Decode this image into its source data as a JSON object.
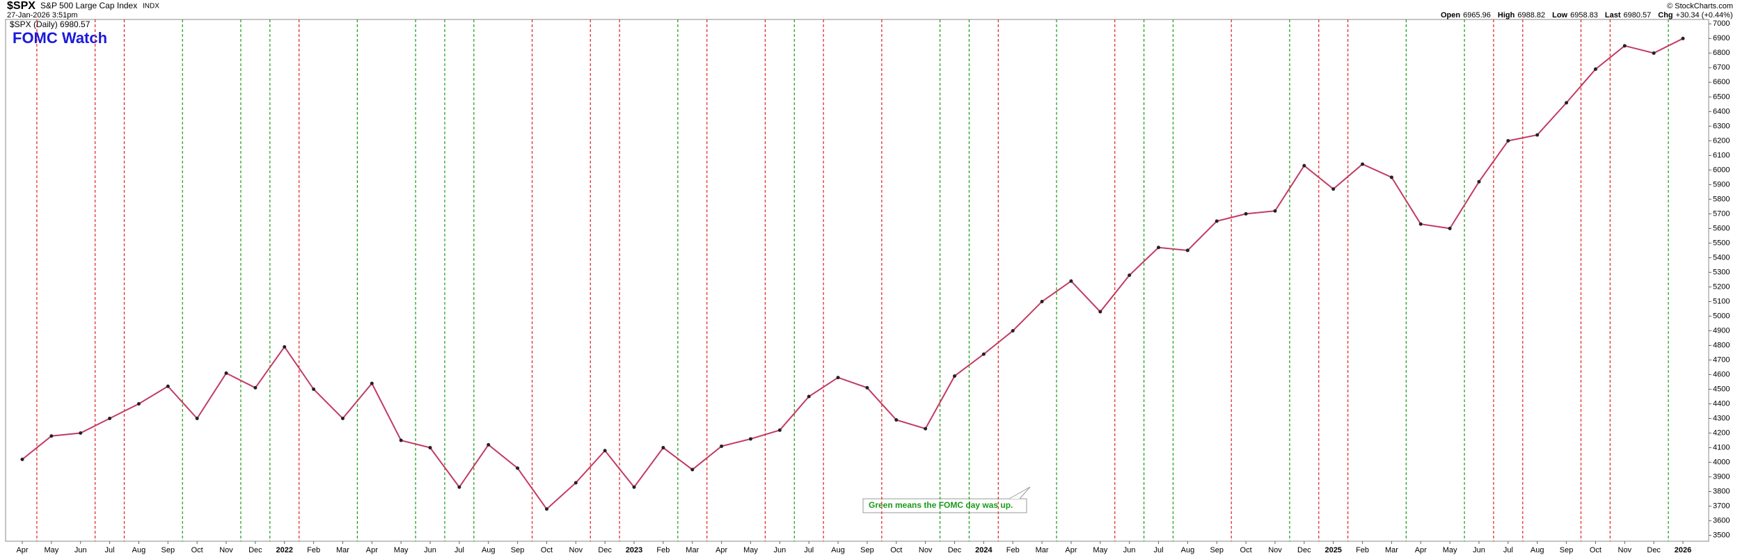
{
  "header": {
    "symbol": "$SPX",
    "name": "S&P 500 Large Cap Index",
    "exchange": "INDX",
    "timestamp": "27-Jan-2026 3:51pm",
    "legend": "$SPX (Daily) 6980.57",
    "copyright": "© StockCharts.com",
    "quote": [
      {
        "label": "Open",
        "value": "6965.96"
      },
      {
        "label": "High",
        "value": "6988.82"
      },
      {
        "label": "Low",
        "value": "6958.83"
      },
      {
        "label": "Last",
        "value": "6980.57"
      },
      {
        "label": "Chg",
        "value": "+30.34 (+0.44%)"
      }
    ]
  },
  "chart_data": {
    "type": "line",
    "title": "FOMC Watch",
    "annotation": "Green means the FOMC day was up.",
    "categories": [
      "Apr",
      "May",
      "Jun",
      "Jul",
      "Aug",
      "Sep",
      "Oct",
      "Nov",
      "Dec",
      "2022",
      "Feb",
      "Mar",
      "Apr",
      "May",
      "Jun",
      "Jul",
      "Aug",
      "Sep",
      "Oct",
      "Nov",
      "Dec",
      "2023",
      "Feb",
      "Mar",
      "Apr",
      "May",
      "Jun",
      "Jul",
      "Aug",
      "Sep",
      "Oct",
      "Nov",
      "Dec",
      "2024",
      "Feb",
      "Mar",
      "Apr",
      "May",
      "Jun",
      "Jul",
      "Aug",
      "Sep",
      "Oct",
      "Nov",
      "Dec",
      "2025",
      "Feb",
      "Mar",
      "Apr",
      "May",
      "Jun",
      "Jul",
      "Aug",
      "Sep",
      "Oct",
      "Nov",
      "Dec",
      "2026"
    ],
    "series": [
      {
        "name": "$SPX",
        "color": "#c23a62",
        "values": [
          4020,
          4180,
          4200,
          4300,
          4400,
          4520,
          4300,
          4610,
          4510,
          4790,
          4500,
          4300,
          4540,
          4150,
          4100,
          3830,
          4120,
          3960,
          3680,
          3860,
          4080,
          3830,
          4100,
          3950,
          4110,
          4160,
          4220,
          4450,
          4580,
          4510,
          4290,
          4230,
          4590,
          4740,
          4900,
          5100,
          5240,
          5030,
          5280,
          5470,
          5450,
          5650,
          5700,
          5720,
          6030,
          5870,
          6040,
          5950,
          5630,
          5600,
          5920,
          6200,
          6240,
          6460,
          6690,
          6850,
          6800,
          6900
        ]
      }
    ],
    "fomc_line_colors": [
      "#e02020",
      null,
      "#e02020",
      "#e02020",
      null,
      "#1a9a1a",
      null,
      "#1a9a1a",
      "#1a9a1a",
      "#e02020",
      null,
      "#1a9a1a",
      null,
      "#1a9a1a",
      "#1a9a1a",
      "#1a9a1a",
      null,
      "#e02020",
      null,
      "#e02020",
      "#e02020",
      null,
      "#1a9a1a",
      "#e02020",
      null,
      "#e02020",
      "#1a9a1a",
      "#e02020",
      null,
      "#e02020",
      null,
      "#1a9a1a",
      "#1a9a1a",
      "#e02020",
      null,
      "#1a9a1a",
      null,
      "#e02020",
      "#1a9a1a",
      "#1a9a1a",
      null,
      "#e02020",
      null,
      "#1a9a1a",
      "#e02020",
      "#e02020",
      null,
      "#1a9a1a",
      null,
      "#1a9a1a",
      "#e02020",
      "#e02020",
      null,
      "#e02020",
      "#e02020",
      null,
      "#1a9a1a",
      null
    ],
    "ylim": [
      3460,
      7030
    ],
    "yticks": [
      3500,
      3600,
      3700,
      3800,
      3900,
      4000,
      4100,
      4200,
      4300,
      4400,
      4500,
      4600,
      4700,
      4800,
      4900,
      5000,
      5100,
      5200,
      5300,
      5400,
      5500,
      5600,
      5700,
      5800,
      5900,
      6000,
      6100,
      6200,
      6300,
      6400,
      6500,
      6600,
      6700,
      6800,
      6900,
      7000
    ]
  }
}
